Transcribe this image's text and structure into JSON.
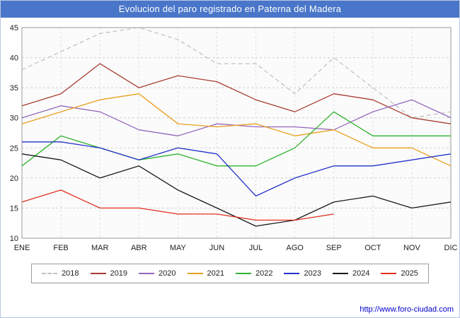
{
  "colors": {
    "titlebar_bg": "#4a76c9",
    "plot_bg": "#fbfbfb",
    "plot_border": "#9a9a9a",
    "grid": "#cfcfcf",
    "axis_text": "#222222",
    "link": "#0000c8"
  },
  "footer": {
    "link": "http://www.foro-ciudad.com"
  },
  "chart_data": {
    "type": "line",
    "title": "Evolucion del paro registrado en Paterna del Madera",
    "categories": [
      "ENE",
      "FEB",
      "MAR",
      "ABR",
      "MAY",
      "JUN",
      "JUL",
      "AGO",
      "SEP",
      "OCT",
      "NOV",
      "DIC"
    ],
    "ylim": [
      10,
      45
    ],
    "yticks": [
      45,
      40,
      35,
      30,
      25,
      20,
      15,
      10
    ],
    "grid": true,
    "legend_position": "bottom",
    "series": [
      {
        "name": "2018",
        "color": "#c2c2c2",
        "dash": "6 4",
        "values": [
          38,
          41,
          44,
          45,
          43,
          39,
          39,
          34,
          40,
          35,
          30,
          31
        ]
      },
      {
        "name": "2019",
        "color": "#a93d32",
        "values": [
          32,
          34,
          39,
          35,
          37,
          36,
          33,
          31,
          34,
          33,
          30,
          29
        ]
      },
      {
        "name": "2020",
        "color": "#9467bd",
        "values": [
          30,
          32,
          31,
          28,
          27,
          29,
          28.5,
          28.5,
          28,
          31,
          33,
          30
        ]
      },
      {
        "name": "2021",
        "color": "#e8a01d",
        "values": [
          29,
          31,
          33,
          34,
          29,
          28.5,
          29,
          27,
          28,
          25,
          25,
          22
        ]
      },
      {
        "name": "2022",
        "color": "#2db32d",
        "values": [
          22,
          27,
          25,
          23,
          24,
          22,
          22,
          25,
          31,
          27,
          27,
          27
        ]
      },
      {
        "name": "2023",
        "color": "#2531c9",
        "values": [
          26,
          26,
          25,
          23,
          25,
          24,
          17,
          20,
          22,
          22,
          23,
          24
        ]
      },
      {
        "name": "2024",
        "color": "#1a1a1a",
        "values": [
          24,
          23,
          20,
          22,
          18,
          15,
          12,
          13,
          16,
          17,
          15,
          16
        ]
      },
      {
        "name": "2025",
        "color": "#e03020",
        "values": [
          16,
          18,
          15,
          15,
          14,
          14,
          13,
          13,
          14
        ]
      }
    ]
  }
}
